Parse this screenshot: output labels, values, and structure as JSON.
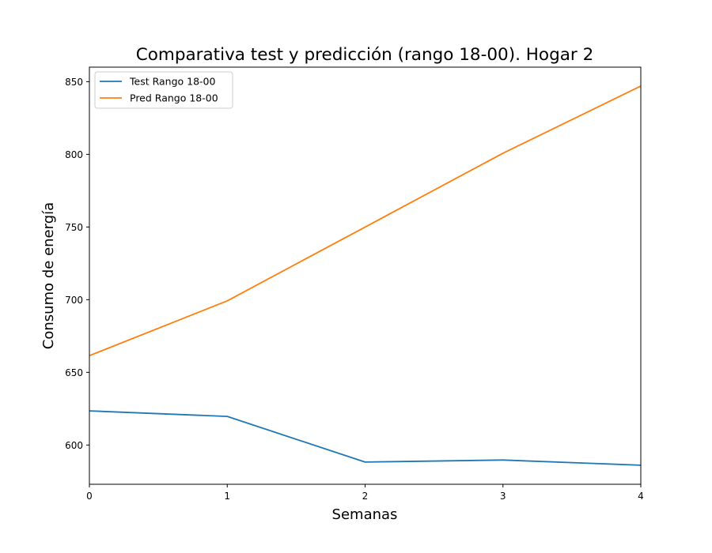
{
  "chart_data": {
    "type": "line",
    "title": "Comparativa test y predicción (rango 18-00). Hogar 2",
    "xlabel": "Semanas",
    "ylabel": "Consumo de energía",
    "x": [
      0,
      1,
      2,
      3,
      4
    ],
    "xlim": [
      0,
      4
    ],
    "ylim": [
      573,
      860
    ],
    "xticks": [
      0,
      1,
      2,
      3,
      4
    ],
    "yticks": [
      600,
      650,
      700,
      750,
      800,
      850
    ],
    "grid": false,
    "legend_position": "top-left",
    "series": [
      {
        "name": "Test Rango 18-00",
        "color": "#1f77b4",
        "values": [
          623.5,
          619.7,
          588.3,
          589.7,
          586.1
        ]
      },
      {
        "name": "Pred Rango 18-00",
        "color": "#ff7f0e",
        "values": [
          661.5,
          699.2,
          750.0,
          800.8,
          847.0
        ]
      }
    ]
  }
}
